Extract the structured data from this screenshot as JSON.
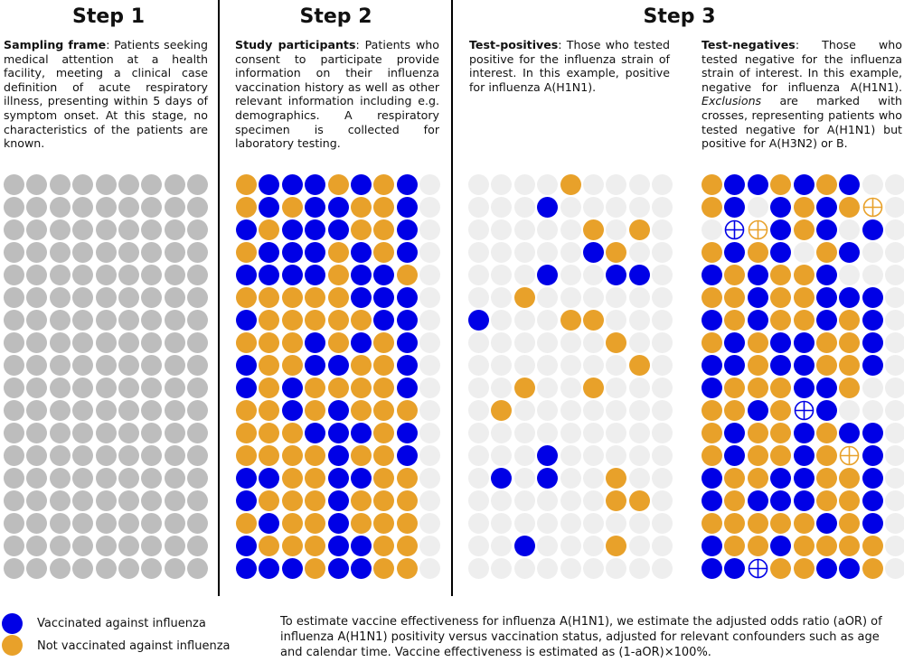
{
  "colors": {
    "vaccinated": "#0000e6",
    "not_vaccinated": "#e8a12a",
    "unknown": "#bdbdbd",
    "empty": "#eeeeee"
  },
  "steps": [
    {
      "title": "Step 1"
    },
    {
      "title": "Step 2"
    },
    {
      "title": "Step 3"
    }
  ],
  "panels": {
    "sampling": {
      "heading": "Sampling frame",
      "text": ": Patients seeking medical attention at a health facility, meeting a clinical case definition of acute respiratory illness, presenting within 5 days of symptom onset. At this stage, no characteristics of the patients are known."
    },
    "participants": {
      "heading": "Study participants",
      "text": ": Patients who consent to participate provide information on their influenza vaccination history as well as other relevant information including e.g. demographics. A respiratory specimen is collected for laboratory testing."
    },
    "positives": {
      "heading": "Test-positives",
      "text": ": Those who tested positive for the influenza strain of interest. In this example, positive for influenza A(H1N1)."
    },
    "negatives": {
      "heading": "Test-negatives",
      "text_a": ": Those who tested negative for the influenza strain of interest. In this example, negative for influenza A(H1N1). ",
      "text_em": "Exclusions",
      "text_b": " are marked with crosses, representing patients who tested negative for A(H1N1) but positive for A(H3N2) or B."
    }
  },
  "grids": {
    "step2": [
      "OBBBOBOB",
      "OBOBBOOB",
      "BOBBBOOB",
      "OBBBOBOB",
      "BBBBOBBO",
      "OOOOOBBB",
      "BOOOOOBB",
      "OOOBOBOB",
      "BOOBBOOB",
      "BOBOOOOB",
      "OOBOBOOO",
      "OOOBBBOB",
      "OOOOBOOB",
      "BBOOBBOO",
      "BOOOBOOO",
      "OBOOBOOO",
      "BOOOBBOO",
      "BBBOBBOO"
    ],
    "positives": [
      "....O...",
      "...B....",
      ".....O.O",
      ".....BO.",
      "...B..BB",
      "..O.....",
      "B...OO..",
      "......O.",
      ".......O",
      "..O..O..",
      ".O......",
      "........",
      "...B....",
      ".B.B..O.",
      "......OO",
      "........",
      "..B...O.",
      "........"
    ],
    "negatives": [
      "OBBOBOB",
      "OB.BOBOX",
      ".YXBOB.B",
      "OBOB.OB",
      "BOBOOB.",
      "OOBOOBBB",
      "BOBOOBOB",
      "OBOBBOOB",
      "BBOBBOOB",
      "BOOOBBO.",
      "OOBOYB..",
      "OBOOBOBB",
      "OBOOBOXB",
      "BOOBBOOB",
      "BOBBBOOB",
      "OOOOOBOB",
      "BOOBOOOO",
      "BBYOOBBO"
    ]
  },
  "legend": {
    "vaccinated": "Vaccinated against influenza",
    "not_vaccinated": "Not vaccinated against influenza"
  },
  "footnote": "To estimate vaccine effectiveness for influenza A(H1N1), we estimate the adjusted odds ratio (aOR) of influenza A(H1N1) positivity versus vaccination status, adjusted for relevant confounders such as age and calendar time. Vaccine effectiveness is estimated as (1-aOR)×100%."
}
